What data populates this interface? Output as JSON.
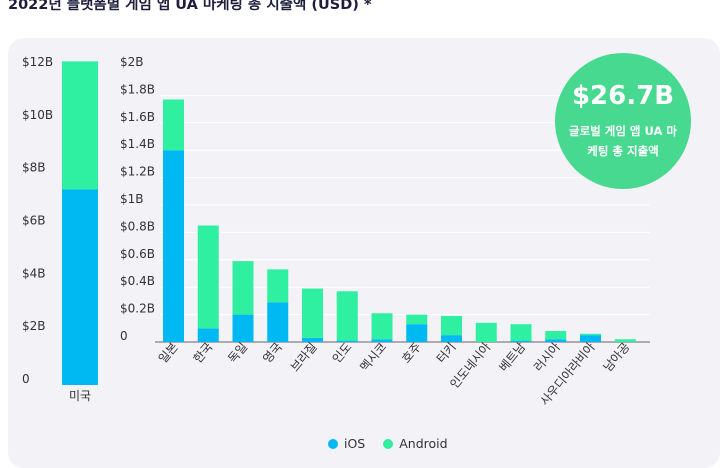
{
  "title": "2022년 플랫폼별 게임 앱 UA 마케팅 총 지출액 (USD) *",
  "badge": {
    "value": "$26.7B",
    "caption": "글로벌 게임 앱 UA 마케팅 총 지출액"
  },
  "colors": {
    "ios": "#00b9f2",
    "android": "#2ef0a0",
    "badge": "#48d990",
    "card": "#f2f2f7"
  },
  "legend": [
    {
      "label": "iOS",
      "color": "#00b9f2"
    },
    {
      "label": "Android",
      "color": "#2ef0a0"
    }
  ],
  "chart_data": [
    {
      "type": "bar",
      "stacked": true,
      "categories": [
        "미국"
      ],
      "series": [
        {
          "name": "iOS",
          "values": [
            7.4
          ]
        },
        {
          "name": "Android",
          "values": [
            4.85
          ]
        }
      ],
      "yticks": [
        "0",
        "$2B",
        "$4B",
        "$6B",
        "$8B",
        "$10B",
        "$12B"
      ],
      "ylim": [
        0,
        12
      ]
    },
    {
      "type": "bar",
      "stacked": true,
      "categories": [
        "일본",
        "한국",
        "독일",
        "영국",
        "브라질",
        "인도",
        "멕시코",
        "호주",
        "터키",
        "인도네시아",
        "베트남",
        "러시아",
        "사우디아라비아",
        "남아공"
      ],
      "series": [
        {
          "name": "iOS",
          "values": [
            1.4,
            0.1,
            0.2,
            0.29,
            0.03,
            0.01,
            0.02,
            0.13,
            0.05,
            0.0,
            0.01,
            0.02,
            0.05,
            0.0
          ]
        },
        {
          "name": "Android",
          "values": [
            0.37,
            0.75,
            0.39,
            0.24,
            0.36,
            0.36,
            0.19,
            0.07,
            0.14,
            0.14,
            0.12,
            0.06,
            0.01,
            0.02
          ]
        }
      ],
      "yticks": [
        "0",
        "$0.2B",
        "$0.4B",
        "$0.6B",
        "$0.8B",
        "$1B",
        "$1.2B",
        "$1.4B",
        "$1.6B",
        "$1.8B",
        "$2B"
      ],
      "ylim": [
        0,
        2
      ]
    }
  ]
}
